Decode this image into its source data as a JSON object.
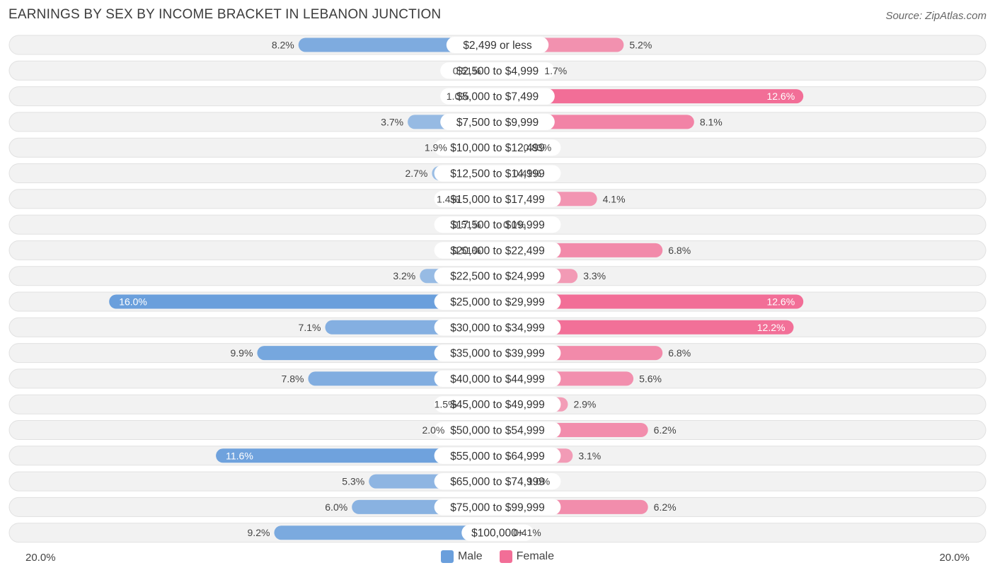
{
  "title": "EARNINGS BY SEX BY INCOME BRACKET IN LEBANON JUNCTION",
  "source": "Source: ZipAtlas.com",
  "axis": {
    "left_label": "20.0%",
    "right_label": "20.0%"
  },
  "legend": {
    "male_label": "Male",
    "female_label": "Female",
    "male_color": "#6a9fdc",
    "female_color": "#f26e97"
  },
  "chart_data": {
    "type": "bar",
    "orientation": "horizontal-diverging",
    "title": "EARNINGS BY SEX BY INCOME BRACKET IN LEBANON JUNCTION",
    "xlim": [
      -20,
      20
    ],
    "categories": [
      "$2,499 or less",
      "$2,500 to $4,999",
      "$5,000 to $7,499",
      "$7,500 to $9,999",
      "$10,000 to $12,499",
      "$12,500 to $14,999",
      "$15,000 to $17,499",
      "$17,500 to $19,999",
      "$20,000 to $22,499",
      "$22,500 to $24,999",
      "$25,000 to $29,999",
      "$30,000 to $34,999",
      "$35,000 to $39,999",
      "$40,000 to $44,999",
      "$45,000 to $49,999",
      "$50,000 to $54,999",
      "$55,000 to $64,999",
      "$65,000 to $74,999",
      "$75,000 to $99,999",
      "$100,000+"
    ],
    "series": [
      {
        "name": "Male",
        "color": "#6a9fdc",
        "values": [
          8.2,
          0.51,
          1.0,
          3.7,
          1.9,
          2.7,
          1.4,
          0.51,
          0.51,
          3.2,
          16.0,
          7.1,
          9.9,
          7.8,
          1.5,
          2.0,
          11.6,
          5.3,
          6.0,
          9.2
        ],
        "labels": [
          "8.2%",
          "0.51%",
          "1.0%",
          "3.7%",
          "1.9%",
          "2.7%",
          "1.4%",
          "0.51%",
          "0.51%",
          "3.2%",
          "16.0%",
          "7.1%",
          "9.9%",
          "7.8%",
          "1.5%",
          "2.0%",
          "11.6%",
          "5.3%",
          "6.0%",
          "9.2%"
        ]
      },
      {
        "name": "Female",
        "color": "#f26e97",
        "values": [
          5.2,
          1.7,
          12.6,
          8.1,
          0.83,
          0.41,
          4.1,
          0.0,
          6.8,
          3.3,
          12.6,
          12.2,
          6.8,
          5.6,
          2.9,
          6.2,
          3.1,
          1.0,
          6.2,
          0.41
        ],
        "labels": [
          "5.2%",
          "1.7%",
          "12.6%",
          "8.1%",
          "0.83%",
          "0.41%",
          "4.1%",
          "0.0%",
          "6.8%",
          "3.3%",
          "12.6%",
          "12.2%",
          "6.8%",
          "5.6%",
          "2.9%",
          "6.2%",
          "3.1%",
          "1.0%",
          "6.2%",
          "0.41%"
        ]
      }
    ]
  }
}
